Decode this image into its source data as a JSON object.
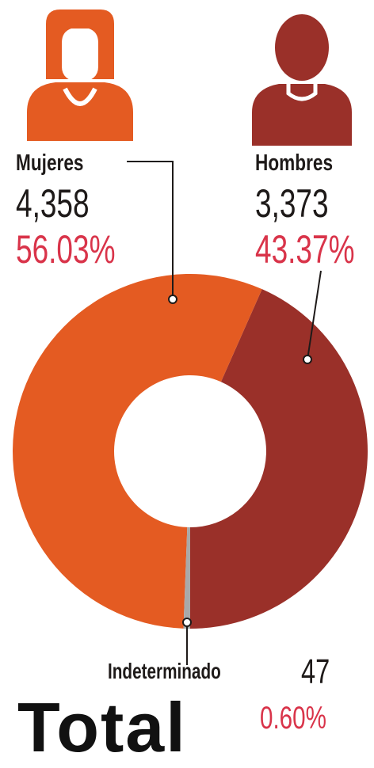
{
  "chart_data": {
    "type": "pie",
    "donut": true,
    "categories": [
      "Mujeres",
      "Hombres",
      "Indeterminado"
    ],
    "values": [
      4358,
      3373,
      47
    ],
    "percentages": [
      "56.03%",
      "43.37%",
      "0.60%"
    ],
    "counts_text": [
      "4,358",
      "3,373",
      "47"
    ],
    "colors": [
      "#e45b22",
      "#9a3029",
      "#a9a9a9"
    ]
  },
  "footer": {
    "total_label": "Total"
  },
  "colors": {
    "label_text": "#1e1a19",
    "percent_text": "#d9344a",
    "leader_line": "#1e1a19",
    "woman_icon": "#e45b22",
    "man_icon": "#9a3029"
  },
  "icons": {
    "women": "woman-icon",
    "men": "man-icon"
  }
}
